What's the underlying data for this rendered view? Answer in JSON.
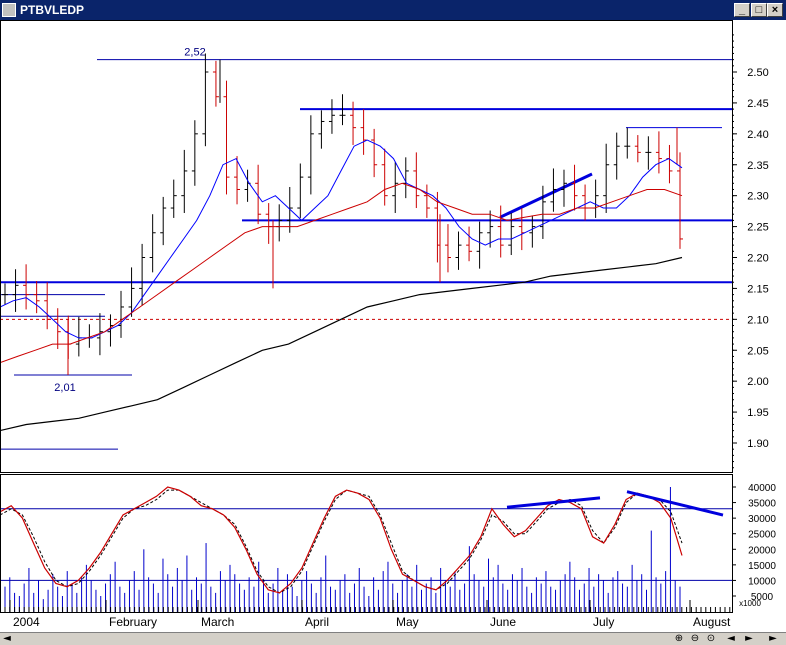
{
  "window": {
    "title": "PTBVLEDP",
    "min_label": "_",
    "max_label": "□",
    "close_label": "×"
  },
  "statusbar": {
    "left_icon": "◄",
    "icons": [
      "⊕",
      "⊖",
      "⊙",
      "◄",
      "►",
      "►"
    ]
  },
  "chart_data": [
    {
      "type": "candlestick",
      "title": "",
      "x_ticks": [
        "2004",
        "February",
        "March",
        "April",
        "May",
        "June",
        "July",
        "August"
      ],
      "y_ticks": [
        "1.90",
        "1.95",
        "2.00",
        "2.05",
        "2.10",
        "2.15",
        "2.20",
        "2.25",
        "2.30",
        "2.35",
        "2.40",
        "2.45",
        "2.50"
      ],
      "ylim": [
        1.86,
        2.56
      ],
      "annotations": {
        "high_label": "2,52",
        "high_value": 2.52,
        "low_label": "2,01",
        "low_value": 2.01,
        "support_1": 2.16,
        "support_2": 2.26,
        "resistance": 2.44,
        "dashed_level": 2.1,
        "recent_high": 2.41,
        "lower_box": 1.89,
        "upper_box": 2.14
      },
      "series": [
        {
          "name": "",
          "color": "#000000",
          "values": [
            2.14,
            2.155,
            2.14,
            2.13,
            2.1,
            2.08,
            2.06,
            2.07,
            2.07,
            2.08,
            2.09,
            2.12,
            2.15,
            2.2,
            2.24,
            2.28,
            2.3,
            2.34,
            2.4,
            2.5,
            2.46,
            2.33,
            2.31,
            2.32,
            2.27,
            2.25,
            2.26,
            2.28,
            2.33,
            2.4,
            2.42,
            2.43,
            2.43,
            2.41,
            2.39,
            2.35,
            2.3,
            2.32,
            2.34,
            2.3,
            2.28,
            2.22,
            2.2,
            2.22,
            2.21,
            2.24,
            2.25,
            2.22,
            2.25,
            2.24,
            2.25,
            2.29,
            2.31,
            2.32,
            2.3,
            2.28,
            2.3,
            2.35,
            2.38,
            2.38,
            2.37,
            2.37,
            2.36,
            2.34,
            2.23
          ]
        },
        {
          "name": "",
          "color": "#0000ff",
          "values": [
            2.12,
            2.13,
            2.135,
            2.12,
            2.1,
            2.08,
            2.07,
            2.07,
            2.08,
            2.09,
            2.11,
            2.14,
            2.17,
            2.2,
            2.23,
            2.26,
            2.3,
            2.35,
            2.36,
            2.32,
            2.29,
            2.3,
            2.28,
            2.26,
            2.28,
            2.3,
            2.34,
            2.38,
            2.39,
            2.38,
            2.36,
            2.32,
            2.31,
            2.3,
            2.28,
            2.25,
            2.23,
            2.22,
            2.23,
            2.23,
            2.24,
            2.25,
            2.26,
            2.27,
            2.28,
            2.29,
            2.28,
            2.28,
            2.3,
            2.33,
            2.35,
            2.36,
            2.345
          ]
        },
        {
          "name": "",
          "color": "#cc0000",
          "values": [
            2.03,
            2.04,
            2.05,
            2.06,
            2.06,
            2.07,
            2.08,
            2.1,
            2.12,
            2.14,
            2.16,
            2.18,
            2.2,
            2.22,
            2.24,
            2.25,
            2.25,
            2.25,
            2.26,
            2.27,
            2.28,
            2.29,
            2.31,
            2.32,
            2.31,
            2.29,
            2.28,
            2.27,
            2.27,
            2.26,
            2.265,
            2.27,
            2.27,
            2.28,
            2.28,
            2.29,
            2.3,
            2.31,
            2.31,
            2.3
          ]
        },
        {
          "name": "",
          "color": "#000000",
          "values": [
            1.92,
            1.93,
            1.935,
            1.94,
            1.95,
            1.96,
            1.97,
            1.99,
            2.01,
            2.03,
            2.05,
            2.06,
            2.08,
            2.1,
            2.12,
            2.13,
            2.14,
            2.145,
            2.15,
            2.155,
            2.16,
            2.17,
            2.175,
            2.18,
            2.185,
            2.19,
            2.2
          ]
        }
      ]
    },
    {
      "type": "line",
      "title": "",
      "y_ticks": [
        "40000",
        "35000",
        "30000",
        "25000",
        "20000",
        "15000",
        "10000",
        "5000"
      ],
      "y_unit": "x1000",
      "ylim": [
        0,
        42000
      ],
      "levels": [
        33000,
        10000
      ],
      "series": [
        {
          "name": "",
          "color": "#cc0000",
          "values": [
            32000,
            34000,
            30000,
            22000,
            14000,
            9000,
            8000,
            10000,
            14000,
            19000,
            25000,
            31000,
            33000,
            35000,
            37000,
            40000,
            39000,
            37000,
            34000,
            33000,
            31000,
            27000,
            20000,
            12000,
            7000,
            6000,
            9000,
            14000,
            22000,
            30000,
            37000,
            39000,
            38000,
            36000,
            30000,
            20000,
            12000,
            10000,
            8000,
            7000,
            10000,
            14000,
            18000,
            24000,
            33000,
            28000,
            24000,
            26000,
            30000,
            34000,
            36000,
            35000,
            33000,
            24000,
            22000,
            28000,
            36000,
            38000,
            37000,
            35000,
            30000,
            18000
          ]
        },
        {
          "name": "",
          "color": "#000000",
          "values": [
            31000,
            33000,
            31000,
            24000,
            16000,
            10000,
            8000,
            9000,
            13000,
            18000,
            24000,
            30000,
            33000,
            34000,
            36000,
            39000,
            39000,
            37000,
            35000,
            33000,
            31000,
            28000,
            21000,
            13000,
            8000,
            6000,
            8000,
            13000,
            21000,
            29000,
            36000,
            39000,
            38000,
            37000,
            31000,
            22000,
            13000,
            10000,
            8000,
            7000,
            9000,
            13000,
            17000,
            23000,
            31000,
            29000,
            25000,
            25000,
            29000,
            33000,
            35000,
            36000,
            34000,
            26000,
            22000,
            27000,
            35000,
            38000,
            37000,
            36000,
            32000,
            22000
          ]
        }
      ],
      "volume": [
        8,
        11,
        6,
        5,
        9,
        14,
        6,
        10,
        4,
        7,
        12,
        8,
        5,
        13,
        9,
        6,
        11,
        15,
        10,
        7,
        5,
        9,
        12,
        16,
        8,
        6,
        10,
        13,
        7,
        20,
        11,
        9,
        6,
        17,
        12,
        8,
        14,
        10,
        18,
        7,
        11,
        9,
        22,
        8,
        6,
        13,
        10,
        15,
        12,
        9,
        7,
        11,
        8,
        16,
        10,
        6,
        9,
        14,
        7,
        12,
        8,
        5,
        10,
        13,
        9,
        6,
        11,
        18,
        8,
        7,
        10,
        12,
        6,
        9,
        14,
        8,
        5,
        11,
        7,
        13,
        16,
        9,
        6,
        10,
        12,
        8,
        15,
        7,
        9,
        11,
        6,
        14,
        10,
        8,
        13,
        7,
        9,
        21,
        12,
        10,
        8,
        17,
        11,
        15,
        9,
        7,
        12,
        10,
        14,
        8,
        6,
        11,
        9,
        13,
        8,
        7,
        10,
        12,
        16,
        11,
        7,
        9,
        14,
        8,
        12,
        10,
        6,
        11,
        13,
        9,
        8,
        15,
        10,
        12,
        7,
        26,
        11,
        9,
        13,
        40,
        10,
        8
      ]
    }
  ]
}
